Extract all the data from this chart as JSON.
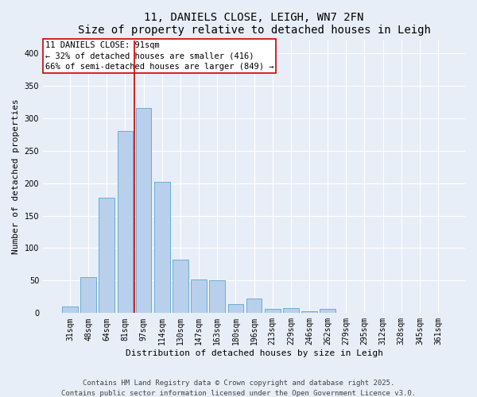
{
  "title": "11, DANIELS CLOSE, LEIGH, WN7 2FN",
  "subtitle": "Size of property relative to detached houses in Leigh",
  "xlabel": "Distribution of detached houses by size in Leigh",
  "ylabel": "Number of detached properties",
  "categories": [
    "31sqm",
    "48sqm",
    "64sqm",
    "81sqm",
    "97sqm",
    "114sqm",
    "130sqm",
    "147sqm",
    "163sqm",
    "180sqm",
    "196sqm",
    "213sqm",
    "229sqm",
    "246sqm",
    "262sqm",
    "279sqm",
    "295sqm",
    "312sqm",
    "328sqm",
    "345sqm",
    "361sqm"
  ],
  "values": [
    10,
    55,
    178,
    280,
    315,
    202,
    82,
    52,
    50,
    14,
    23,
    6,
    8,
    3,
    6,
    1,
    1,
    1,
    1,
    1,
    1
  ],
  "bar_color": "#b8d0eb",
  "bar_edge_color": "#6aaed6",
  "bar_width": 0.85,
  "vline_x_index": 4,
  "vline_x_offset": -0.5,
  "vline_color": "#cc0000",
  "property_label": "11 DANIELS CLOSE: 91sqm",
  "annotation_line1": "← 32% of detached houses are smaller (416)",
  "annotation_line2": "66% of semi-detached houses are larger (849) →",
  "annotation_box_color": "#ffffff",
  "annotation_box_edge": "#cc0000",
  "background_color": "#e8eef7",
  "grid_color": "#ffffff",
  "ylim": [
    0,
    420
  ],
  "yticks": [
    0,
    50,
    100,
    150,
    200,
    250,
    300,
    350,
    400
  ],
  "title_fontsize": 10,
  "axis_fontsize": 8,
  "tick_fontsize": 7,
  "annot_fontsize": 7.5,
  "footer_fontsize": 6.5,
  "footer_line1": "Contains HM Land Registry data © Crown copyright and database right 2025.",
  "footer_line2": "Contains public sector information licensed under the Open Government Licence v3.0."
}
